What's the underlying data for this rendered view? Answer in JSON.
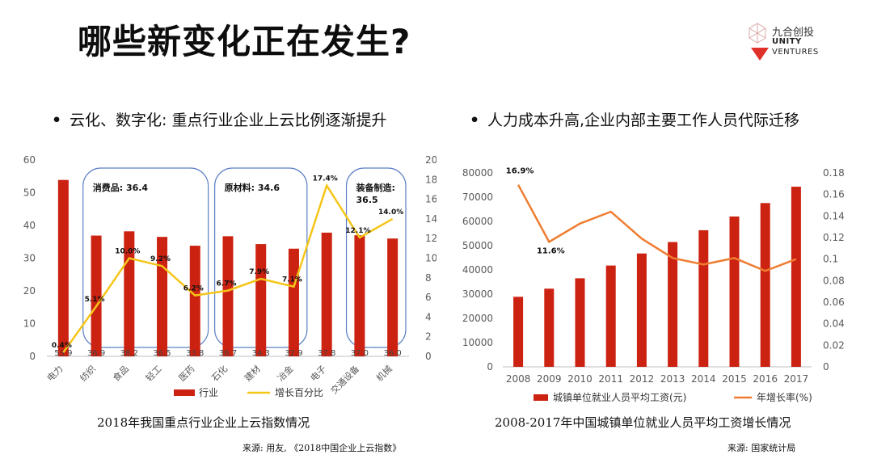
{
  "header": {
    "title": "哪些新变化正在发生?",
    "logo": {
      "cn": "九合创投",
      "en_line1": "UNITY",
      "en_line2": "VENTURES",
      "accent": "#e0302a"
    }
  },
  "left": {
    "bullet": "云化、数字化:  重点行业企业上云比例逐渐提升",
    "caption": "2018年我国重点行业企业上云指数情况",
    "source": "来源:  用友,  《2018中国企业上云指数》"
  },
  "right": {
    "bullet": "人力成本升高,企业内部主要工作人员代际迁移",
    "caption": "2008-2017年中国城镇单位就业人员平均工资增长情况",
    "source": "来源:  国家统计局"
  },
  "chart_data": [
    {
      "type": "bar",
      "categories": [
        "电力",
        "纺织",
        "食品",
        "轻工",
        "医药",
        "石化",
        "建材",
        "冶金",
        "电子",
        "交通设备",
        "机械"
      ],
      "series": [
        {
          "name": "行业",
          "kind": "bar",
          "axis": "left",
          "color": "#cc2211",
          "values": [
            53.9,
            36.9,
            38.2,
            36.5,
            33.8,
            36.7,
            34.3,
            32.9,
            37.8,
            37.0,
            36.0
          ],
          "labels": [
            "53.9",
            "36.9",
            "38.2",
            "36.5",
            "33.8",
            "36.7",
            "34.3",
            "32.9",
            "37.8",
            "37.0",
            "36.0"
          ]
        },
        {
          "name": "增长百分比",
          "kind": "line",
          "axis": "right",
          "color": "#f5c518",
          "values": [
            0.4,
            5.1,
            10.0,
            9.2,
            6.2,
            6.7,
            7.9,
            7.1,
            17.4,
            12.1,
            14.0
          ],
          "labels": [
            "0.4%",
            "5.1%",
            "10.0%",
            "9.2%",
            "6.2%",
            "6.7%",
            "7.9%",
            "7.1%",
            "17.4%",
            "12.1%",
            "14.0%"
          ]
        }
      ],
      "ylim": [
        0,
        60
      ],
      "yticks": [
        "0",
        "10",
        "20",
        "30",
        "40",
        "50",
        "60"
      ],
      "y2lim": [
        0,
        20
      ],
      "y2ticks": [
        "0",
        "2",
        "4",
        "6",
        "8",
        "10",
        "12",
        "14",
        "16",
        "18",
        "20"
      ],
      "groups": [
        {
          "label": "消费品:  36.4",
          "from": 1,
          "to": 4
        },
        {
          "label": "原材料:  34.6",
          "from": 5,
          "to": 7
        },
        {
          "label": "装备制造:\n36.5",
          "from": 9,
          "to": 10
        }
      ],
      "legend": "bottom"
    },
    {
      "type": "bar",
      "categories": [
        "2008",
        "2009",
        "2010",
        "2011",
        "2012",
        "2013",
        "2014",
        "2015",
        "2016",
        "2017"
      ],
      "series": [
        {
          "name": "城镇单位就业人员平均工资(元)",
          "kind": "bar",
          "axis": "left",
          "color": "#cc2211",
          "values": [
            28898,
            32244,
            36539,
            41799,
            46769,
            51483,
            56360,
            62029,
            67569,
            74318
          ]
        },
        {
          "name": "年增长率(%)",
          "kind": "line",
          "axis": "right",
          "color": "#ef7d31",
          "values": [
            0.169,
            0.116,
            0.133,
            0.144,
            0.119,
            0.101,
            0.095,
            0.101,
            0.089,
            0.1
          ]
        }
      ],
      "line_labels": [
        {
          "index": 0,
          "text": "16.9%"
        },
        {
          "index": 1,
          "text": "11.6%"
        }
      ],
      "ylim": [
        0,
        80000
      ],
      "yticks": [
        "0",
        "10000",
        "20000",
        "30000",
        "40000",
        "50000",
        "60000",
        "70000",
        "80000"
      ],
      "y2lim": [
        0,
        0.18
      ],
      "y2ticks": [
        "0",
        "0.02",
        "0.04",
        "0.06",
        "0.08",
        "0.1",
        "0.12",
        "0.14",
        "0.16",
        "0.18"
      ],
      "legend": "bottom"
    }
  ]
}
